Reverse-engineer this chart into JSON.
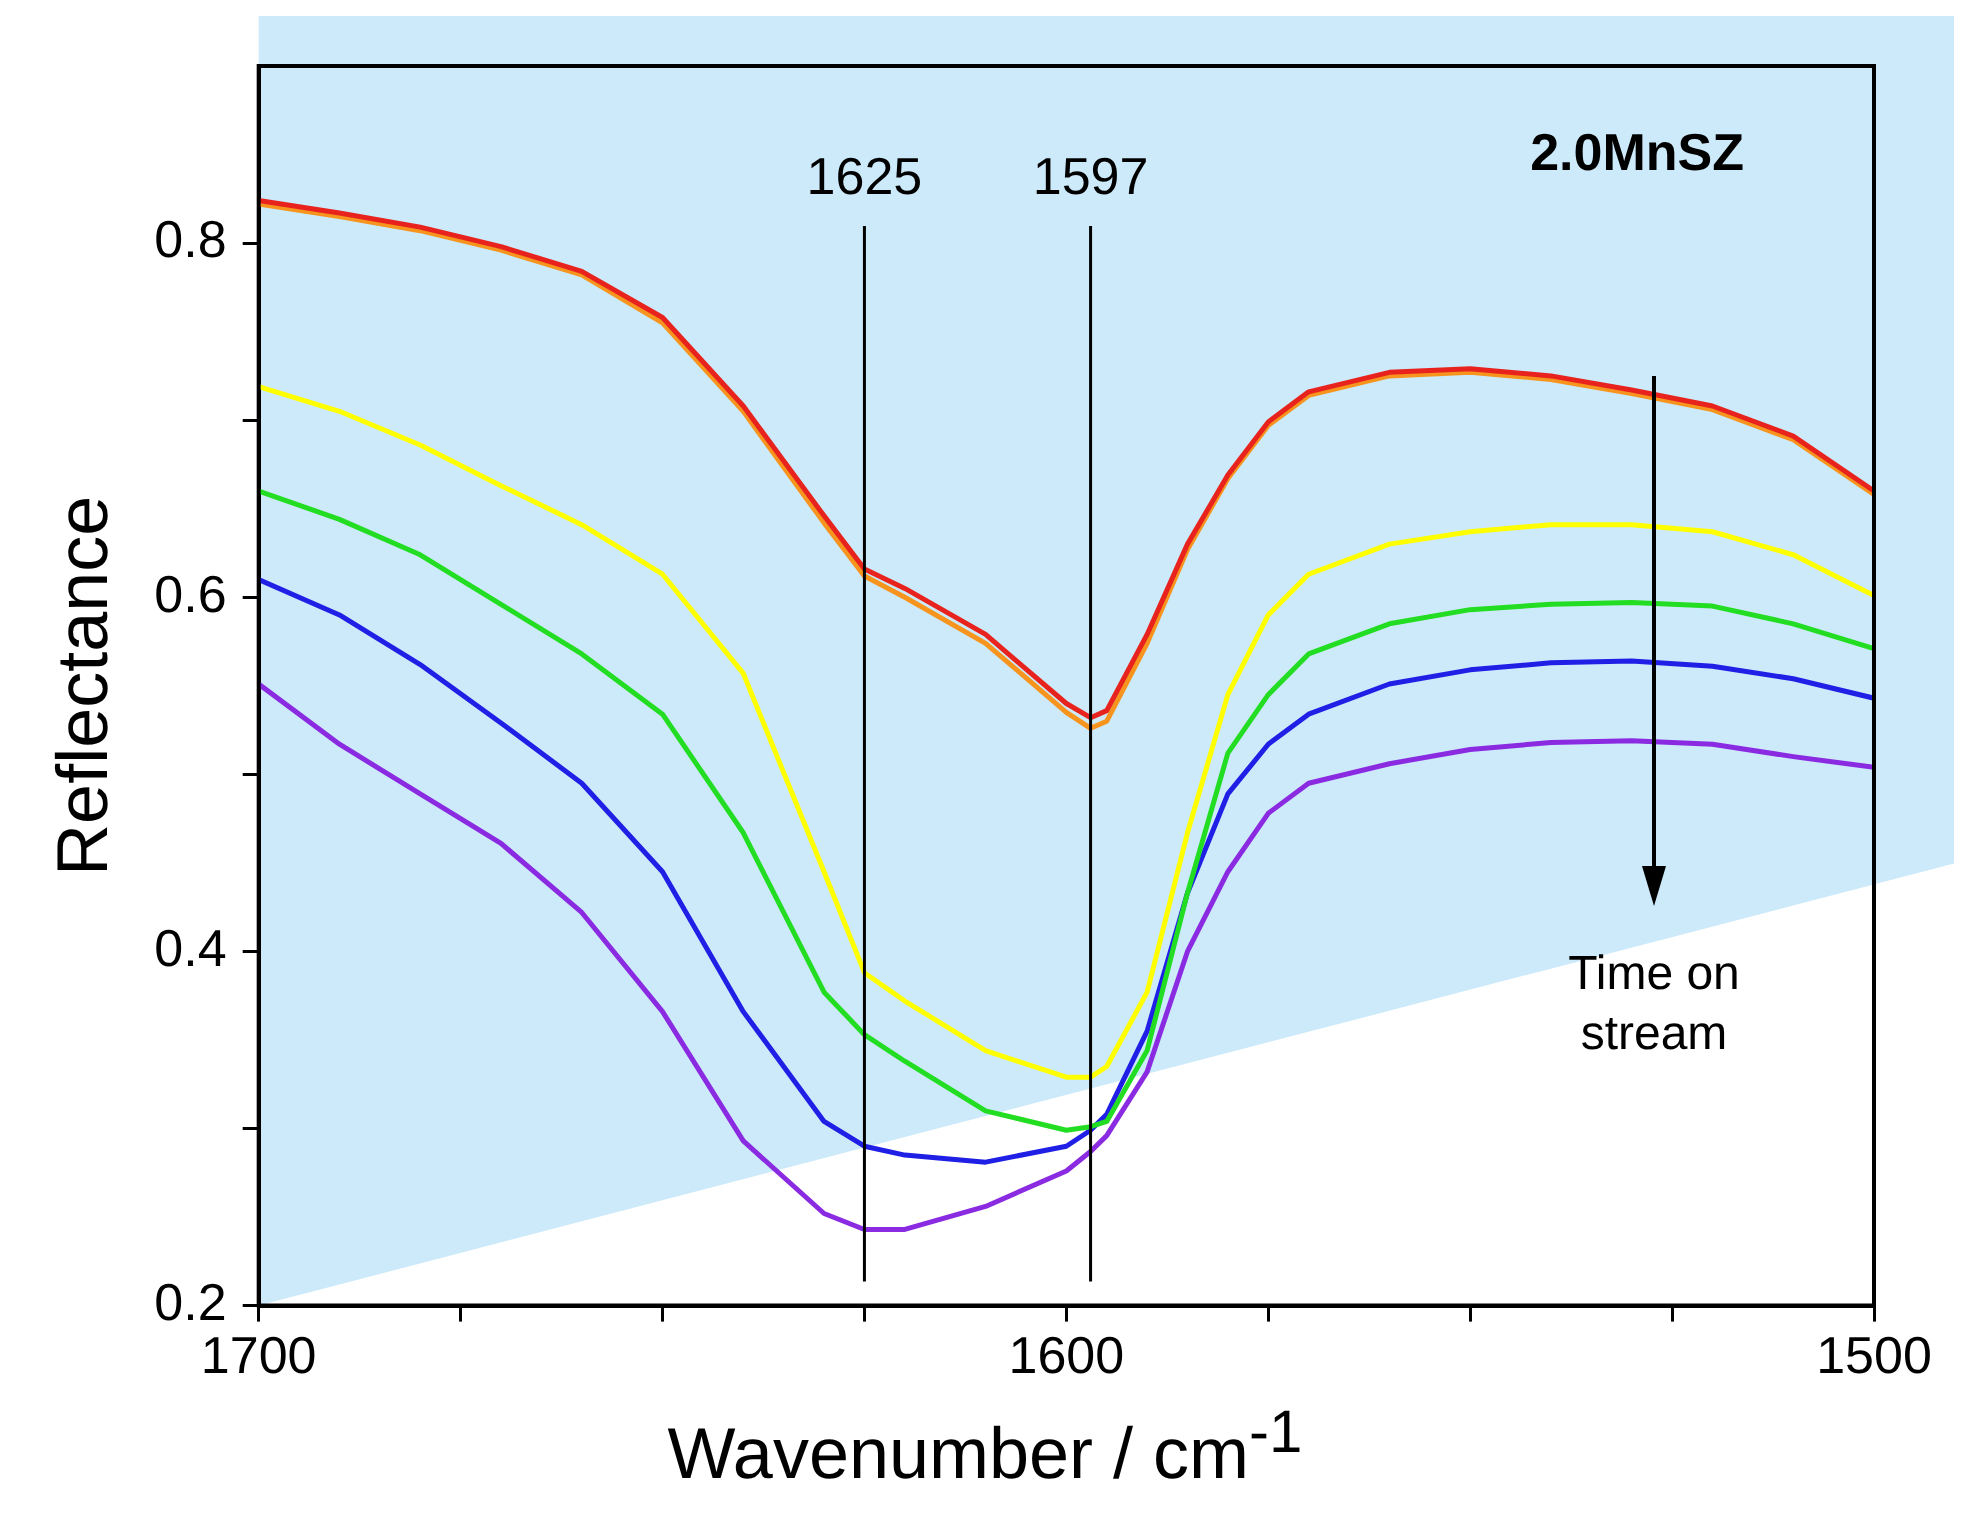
{
  "chart_data": {
    "type": "line",
    "title": "2.0MnSZ",
    "xlabel": "Wavenumber / cm$^{-1}$",
    "ylabel": "Reflectance",
    "x": [
      1700,
      1690,
      1680,
      1670,
      1660,
      1650,
      1640,
      1630,
      1625,
      1620,
      1610,
      1600,
      1597,
      1595,
      1590,
      1585,
      1580,
      1575,
      1570,
      1560,
      1550,
      1540,
      1530,
      1520,
      1510,
      1500
    ],
    "series": [
      {
        "color": "#e8231e",
        "values": [
          0.824,
          0.817,
          0.809,
          0.798,
          0.784,
          0.758,
          0.708,
          0.646,
          0.616,
          0.605,
          0.579,
          0.54,
          0.532,
          0.536,
          0.579,
          0.63,
          0.669,
          0.699,
          0.716,
          0.727,
          0.729,
          0.725,
          0.717,
          0.708,
          0.691,
          0.66
        ]
      },
      {
        "color": "#f7941d",
        "values": [
          0.822,
          0.815,
          0.807,
          0.796,
          0.782,
          0.755,
          0.705,
          0.642,
          0.612,
          0.6,
          0.574,
          0.535,
          0.526,
          0.53,
          0.574,
          0.627,
          0.667,
          0.697,
          0.714,
          0.725,
          0.727,
          0.723,
          0.715,
          0.706,
          0.689,
          0.658
        ]
      },
      {
        "color": "#ffff00",
        "values": [
          0.719,
          0.705,
          0.686,
          0.663,
          0.641,
          0.613,
          0.557,
          0.445,
          0.388,
          0.372,
          0.344,
          0.329,
          0.329,
          0.335,
          0.377,
          0.467,
          0.545,
          0.59,
          0.613,
          0.63,
          0.637,
          0.641,
          0.641,
          0.637,
          0.624,
          0.601
        ]
      },
      {
        "color": "#22dd22",
        "values": [
          0.66,
          0.644,
          0.624,
          0.596,
          0.568,
          0.534,
          0.467,
          0.377,
          0.353,
          0.338,
          0.31,
          0.299,
          0.301,
          0.304,
          0.344,
          0.433,
          0.512,
          0.545,
          0.568,
          0.585,
          0.593,
          0.596,
          0.597,
          0.595,
          0.585,
          0.571
        ]
      },
      {
        "color": "#1f1fe6",
        "values": [
          0.61,
          0.59,
          0.562,
          0.529,
          0.495,
          0.445,
          0.366,
          0.304,
          0.29,
          0.285,
          0.281,
          0.29,
          0.299,
          0.308,
          0.355,
          0.433,
          0.489,
          0.517,
          0.534,
          0.551,
          0.559,
          0.563,
          0.564,
          0.561,
          0.554,
          0.543
        ]
      },
      {
        "color": "#8a2be2",
        "values": [
          0.551,
          0.517,
          0.489,
          0.461,
          0.422,
          0.366,
          0.293,
          0.252,
          0.243,
          0.243,
          0.256,
          0.276,
          0.287,
          0.296,
          0.332,
          0.4,
          0.445,
          0.478,
          0.495,
          0.506,
          0.514,
          0.518,
          0.519,
          0.517,
          0.51,
          0.504
        ]
      }
    ],
    "xlim": [
      1700,
      1500
    ],
    "xticks": [
      1700,
      {
        "value": 1675,
        "label": null
      },
      {
        "value": 1650,
        "label": null
      },
      {
        "value": 1625,
        "label": null
      },
      1600,
      {
        "value": 1575,
        "label": null
      },
      {
        "value": 1550,
        "label": null
      },
      {
        "value": 1525,
        "label": null
      },
      1500
    ],
    "ylim": [
      0.2,
      0.9
    ],
    "yticks": [
      0.2,
      {
        "value": 0.3,
        "label": null
      },
      0.4,
      {
        "value": 0.5,
        "label": null
      },
      0.6,
      {
        "value": 0.7,
        "label": null
      },
      0.8
    ],
    "ref_lines": [
      {
        "axis": "x",
        "value": 1625,
        "label": "1625"
      },
      {
        "axis": "x",
        "value": 1597,
        "label": "1597"
      }
    ],
    "annotations": [
      "Time on stream"
    ],
    "grid": false,
    "legend": false,
    "marker": "none",
    "line_style": "solid"
  }
}
